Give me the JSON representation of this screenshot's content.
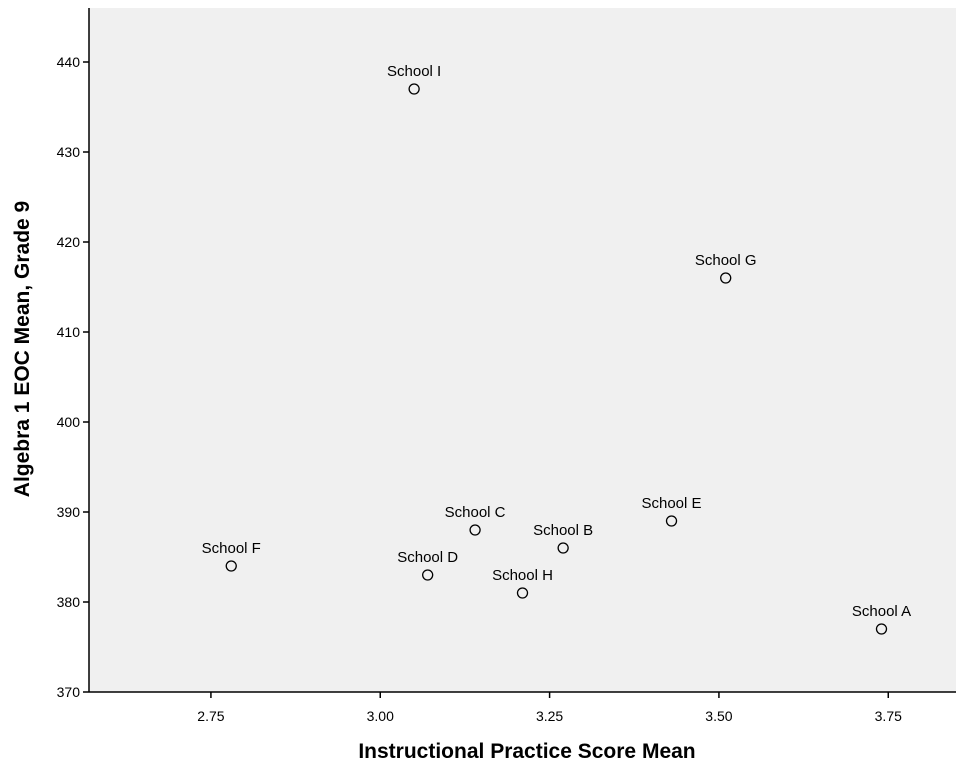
{
  "chart_data": {
    "type": "scatter",
    "xlabel": "Instructional Practice Score Mean",
    "ylabel": "Algebra 1 EOC Mean, Grade 9",
    "xlim": [
      2.57,
      3.85
    ],
    "ylim": [
      370,
      446
    ],
    "xticks": [
      "2.75",
      "3.00",
      "3.25",
      "3.50",
      "3.75"
    ],
    "yticks": [
      "370",
      "380",
      "390",
      "400",
      "410",
      "420",
      "430",
      "440"
    ],
    "grid": false,
    "background": "#f0f0f0",
    "points": [
      {
        "label": "School A",
        "x": 3.74,
        "y": 377
      },
      {
        "label": "School B",
        "x": 3.27,
        "y": 386
      },
      {
        "label": "School C",
        "x": 3.14,
        "y": 388
      },
      {
        "label": "School D",
        "x": 3.07,
        "y": 383
      },
      {
        "label": "School E",
        "x": 3.43,
        "y": 389
      },
      {
        "label": "School F",
        "x": 2.78,
        "y": 384
      },
      {
        "label": "School G",
        "x": 3.51,
        "y": 416
      },
      {
        "label": "School H",
        "x": 3.21,
        "y": 381
      },
      {
        "label": "School I",
        "x": 3.05,
        "y": 437
      }
    ]
  }
}
